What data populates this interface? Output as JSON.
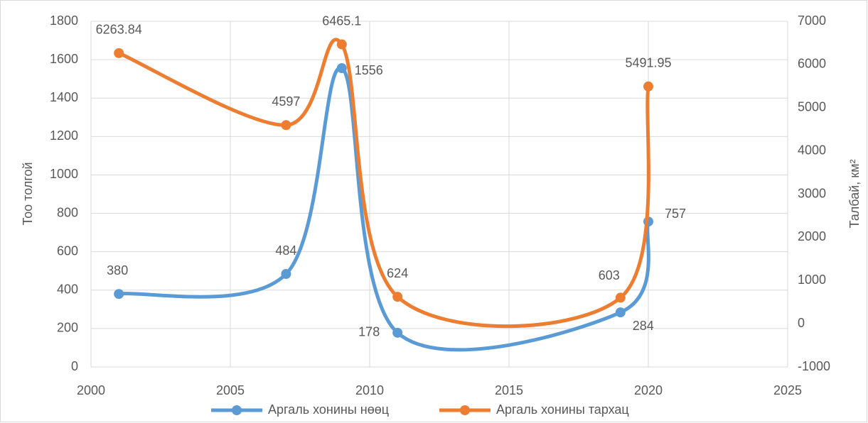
{
  "chart_data": {
    "type": "line",
    "x": [
      2001,
      2007,
      2009,
      2011,
      2019,
      2020
    ],
    "series": [
      {
        "name": "Аргаль хонины нөөц",
        "color": "#5b9bd5",
        "values": [
          380,
          484,
          1556,
          178,
          284,
          757
        ]
      },
      {
        "name": "Аргаль хонины тархац",
        "color": "#ed7d31",
        "axis": "y2",
        "values": [
          6263.84,
          4597,
          6465.1,
          624,
          603,
          5491.95
        ]
      }
    ],
    "ylabel": "Тоо толгой",
    "y2label": "Талбай, км²",
    "xlim": [
      2000,
      2025
    ],
    "xticks": [
      2000,
      2005,
      2010,
      2015,
      2020,
      2025
    ],
    "ylim": [
      0,
      1800
    ],
    "yticks": [
      0,
      200,
      400,
      600,
      800,
      1000,
      1200,
      1400,
      1600,
      1800
    ],
    "y2lim": [
      -1000,
      7000
    ],
    "y2ticks": [
      -1000,
      0,
      1000,
      2000,
      3000,
      4000,
      5000,
      6000,
      7000
    ],
    "grid": true,
    "smooth": true,
    "legend": "bottom"
  }
}
